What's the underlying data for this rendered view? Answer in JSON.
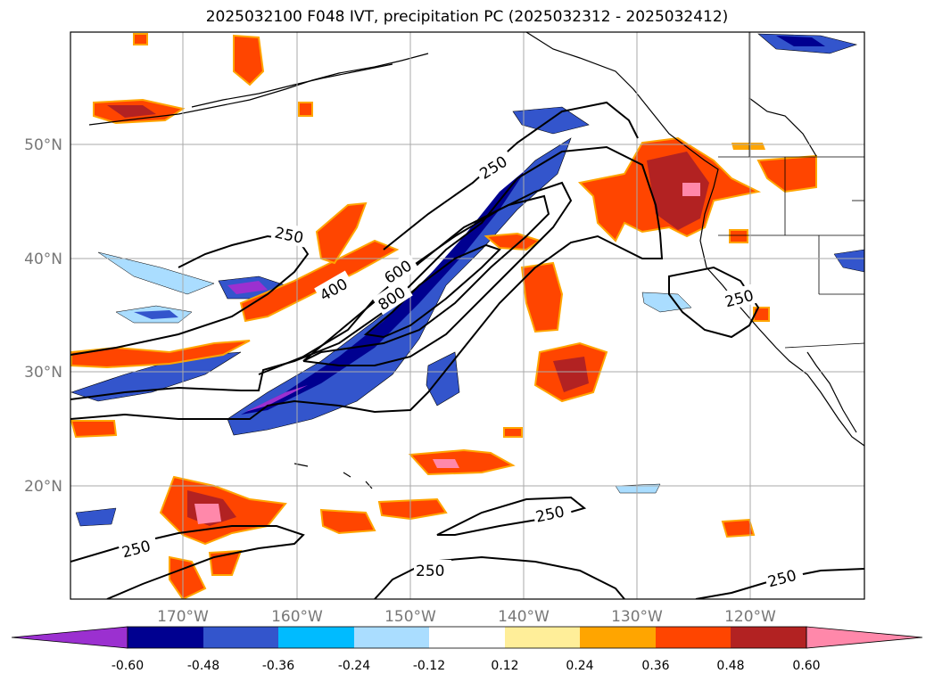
{
  "title": "2025032100 F048 IVT, precipitation PC (2025032312 - 2025032412)",
  "map": {
    "lat_ticks": [
      "50°N",
      "40°N",
      "30°N",
      "20°N"
    ],
    "lon_ticks": [
      "170°W",
      "160°W",
      "150°W",
      "140°W",
      "130°W",
      "120°W"
    ],
    "contour_labels": [
      "250",
      "250",
      "400",
      "600",
      "800",
      "250",
      "250",
      "250",
      "250",
      "250"
    ]
  },
  "colorbar": {
    "colors": [
      "#9b30d0",
      "#000090",
      "#3355cc",
      "#00bbff",
      "#aaddff",
      "#ffffff",
      "#ffee99",
      "#ffa500",
      "#ff4500",
      "#b22222",
      "#ff88aa"
    ],
    "tick_labels": [
      "-0.60",
      "-0.48",
      "-0.36",
      "-0.24",
      "-0.12",
      "0.12",
      "0.24",
      "0.36",
      "0.48",
      "0.60"
    ]
  }
}
